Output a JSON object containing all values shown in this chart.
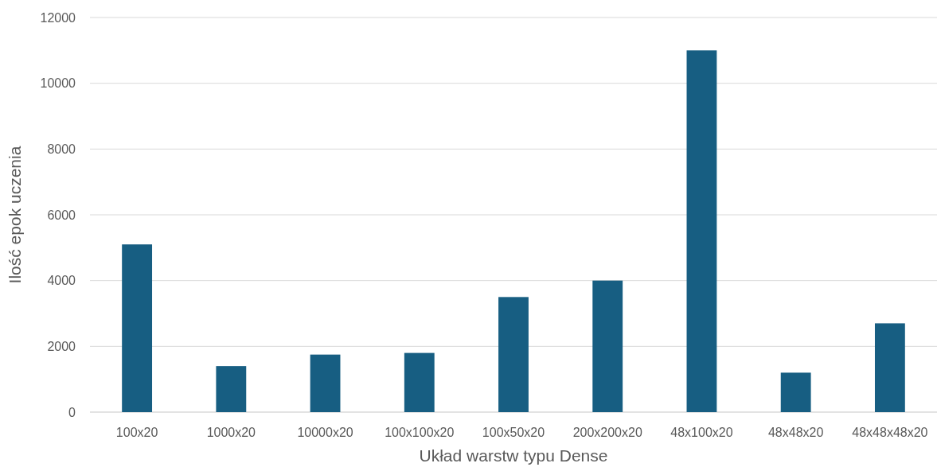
{
  "chart_data": {
    "type": "bar",
    "xlabel": "Układ warstw typu Dense",
    "ylabel": "Ilość epok uczenia",
    "categories": [
      "100x20",
      "1000x20",
      "10000x20",
      "100x100x20",
      "100x50x20",
      "200x200x20",
      "48x100x20",
      "48x48x20",
      "48x48x48x20"
    ],
    "values": [
      5100,
      1400,
      1750,
      1800,
      3500,
      4000,
      11000,
      1200,
      2700
    ],
    "color": "#175e82",
    "ylim": [
      0,
      12000
    ],
    "yticks": [
      0,
      2000,
      4000,
      6000,
      8000,
      10000,
      12000
    ],
    "grid": "y"
  }
}
